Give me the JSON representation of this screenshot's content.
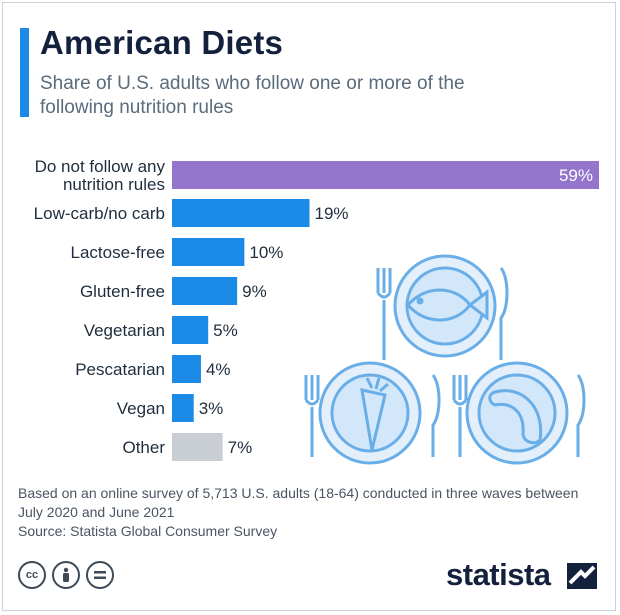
{
  "title": "American Diets",
  "subtitle": "Share of U.S. adults who follow one or more of the following nutrition rules",
  "chart_data": {
    "type": "bar",
    "orientation": "horizontal",
    "categories": [
      [
        "Do not follow any",
        "nutrition rules"
      ],
      [
        "Low-carb/no carb"
      ],
      [
        "Lactose-free"
      ],
      [
        "Gluten-free"
      ],
      [
        "Vegetarian"
      ],
      [
        "Pescatarian"
      ],
      [
        "Vegan"
      ],
      [
        "Other"
      ]
    ],
    "values": [
      59,
      19,
      10,
      9,
      5,
      4,
      3,
      7
    ],
    "value_labels": [
      "59%",
      "19%",
      "10%",
      "9%",
      "5%",
      "4%",
      "3%",
      "7%"
    ],
    "unit": "%",
    "colors": [
      "#9375cc",
      "#1b8ae6",
      "#1b8ae6",
      "#1b8ae6",
      "#1b8ae6",
      "#1b8ae6",
      "#1b8ae6",
      "#c8ced4"
    ],
    "xlim": [
      0,
      59
    ],
    "grid": false,
    "legend": "none"
  },
  "footnote": "Based on an online survey of 5,713 U.S. adults (18-64) conducted in three waves between July 2020 and June 2021",
  "source": "Source: Statista Global Consumer Survey",
  "license_icons": [
    "cc-icon",
    "by-icon",
    "nd-icon"
  ],
  "brand": "statista"
}
